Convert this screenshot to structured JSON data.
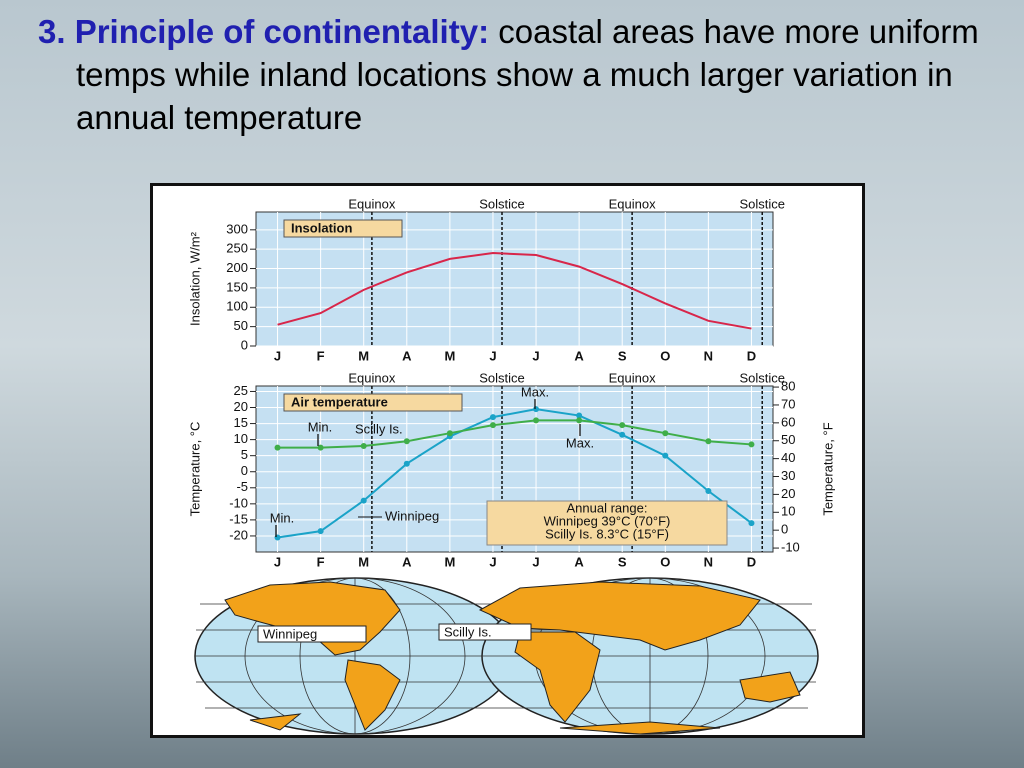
{
  "heading": {
    "lead": "3. Principle of continentality:",
    "text": "coastal areas have more uniform temps while inland locations show a much larger variation in annual temperature"
  },
  "chart_data": [
    {
      "type": "line",
      "title": "Insolation",
      "y_label": "Insolation, W/m²",
      "categories": [
        "J",
        "F",
        "M",
        "A",
        "M",
        "J",
        "J",
        "A",
        "S",
        "O",
        "N",
        "D"
      ],
      "season_labels": [
        "Equinox",
        "Solstice",
        "Equinox",
        "Solstice"
      ],
      "series": [
        {
          "color": "#d8264a",
          "values": [
            55,
            85,
            145,
            190,
            225,
            240,
            235,
            205,
            160,
            110,
            65,
            45
          ]
        }
      ],
      "ylim": [
        0,
        346
      ],
      "yticks": [
        0,
        50,
        100,
        150,
        200,
        250,
        300
      ]
    },
    {
      "type": "line",
      "title": "Air temperature",
      "y_label": "Temperature, °C",
      "y2_label": "Temperature, °F",
      "categories": [
        "J",
        "F",
        "M",
        "A",
        "M",
        "J",
        "J",
        "A",
        "S",
        "O",
        "N",
        "D"
      ],
      "season_labels": [
        "Equinox",
        "Solstice",
        "Equinox",
        "Solstice"
      ],
      "series": [
        {
          "name": "Winnipeg",
          "color": "#1aa3c8",
          "values": [
            -20.5,
            -18.5,
            -9,
            2.5,
            11,
            17,
            19.5,
            17.5,
            11.5,
            5,
            -6,
            -16
          ]
        },
        {
          "name": "Scilly Is.",
          "color": "#3fae49",
          "values": [
            7.5,
            7.5,
            8,
            9.5,
            12,
            14.5,
            16,
            16,
            14.5,
            12,
            9.5,
            8.5
          ]
        }
      ],
      "annotations": [
        "Max.",
        "Min.",
        "Max.",
        "Min."
      ],
      "range_box": [
        "Annual range:",
        "Winnipeg 39°C (70°F)",
        "Scilly Is. 8.3°C (15°F)"
      ],
      "ylim": [
        -25,
        26.7
      ],
      "yticks": [
        -20,
        -15,
        -10,
        -5,
        0,
        5,
        10,
        15,
        20,
        25
      ],
      "y2lim": [
        -12.2,
        80.6
      ],
      "y2ticks": [
        -10,
        0,
        10,
        20,
        30,
        40,
        50,
        60,
        70,
        80
      ]
    }
  ],
  "map": {
    "labels": [
      "Winnipeg",
      "Scilly Is."
    ]
  }
}
